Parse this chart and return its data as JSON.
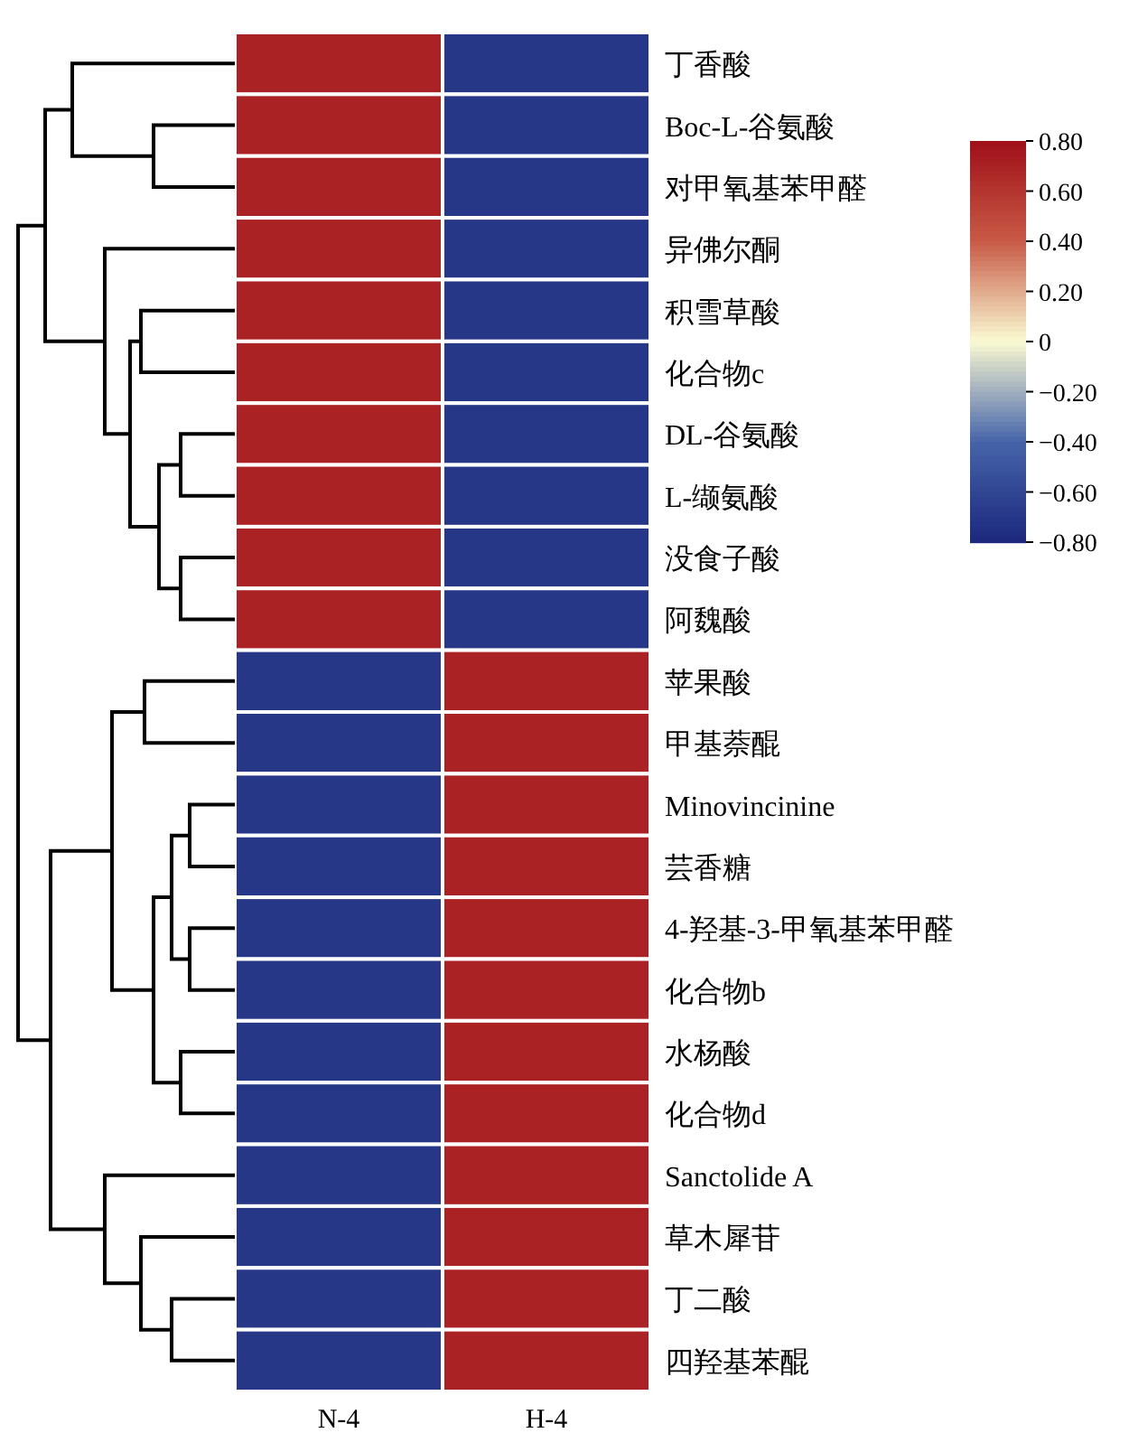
{
  "chart_data": {
    "type": "heatmap",
    "categories": [
      "N-4",
      "H-4"
    ],
    "y_categories": [
      "丁香酸",
      "Boc-L-谷氨酸",
      "对甲氧基苯甲醛",
      "异佛尔酮",
      "积雪草酸",
      "化合物c",
      "DL-谷氨酸",
      "L-缬氨酸",
      "没食子酸",
      "阿魏酸",
      "苹果酸",
      "甲基萘醌",
      "Minovincinine",
      "芸香糖",
      "4-羟基-3-甲氧基苯甲醛",
      "化合物b",
      "水杨酸",
      "化合物d",
      "Sanctolide A",
      "草木犀苷",
      "丁二酸",
      "四羟基苯醌"
    ],
    "cells": [
      [
        0.7,
        -0.7
      ],
      [
        0.7,
        -0.7
      ],
      [
        0.7,
        -0.7
      ],
      [
        0.7,
        -0.7
      ],
      [
        0.7,
        -0.7
      ],
      [
        0.7,
        -0.7
      ],
      [
        0.7,
        -0.7
      ],
      [
        0.7,
        -0.7
      ],
      [
        0.7,
        -0.7
      ],
      [
        0.7,
        -0.7
      ],
      [
        -0.7,
        0.7
      ],
      [
        -0.7,
        0.7
      ],
      [
        -0.7,
        0.7
      ],
      [
        -0.7,
        0.7
      ],
      [
        -0.7,
        0.7
      ],
      [
        -0.7,
        0.7
      ],
      [
        -0.7,
        0.7
      ],
      [
        -0.7,
        0.7
      ],
      [
        -0.7,
        0.7
      ],
      [
        -0.7,
        0.7
      ],
      [
        -0.7,
        0.7
      ],
      [
        -0.7,
        0.7
      ]
    ],
    "clim": [
      -0.8,
      0.8
    ],
    "cticks": [
      {
        "value": 0.8,
        "label": "0.80"
      },
      {
        "value": 0.6,
        "label": "0.60"
      },
      {
        "value": 0.4,
        "label": "0.40"
      },
      {
        "value": 0.2,
        "label": "0.20"
      },
      0,
      {
        "value": -0.2,
        "label": "−0.20"
      },
      {
        "value": -0.4,
        "label": "−0.40"
      },
      {
        "value": -0.6,
        "label": "−0.60"
      },
      {
        "value": -0.8,
        "label": "−0.80"
      }
    ]
  }
}
